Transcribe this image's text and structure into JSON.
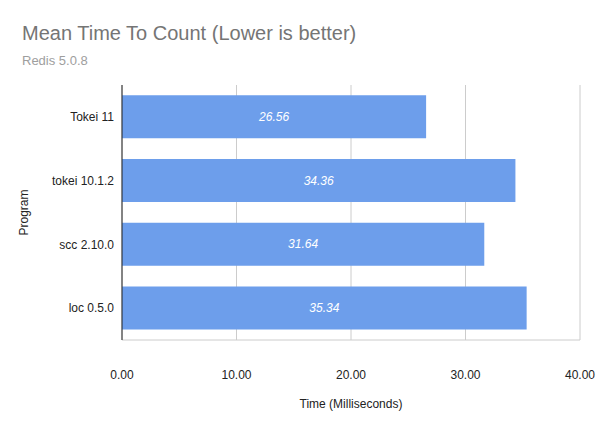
{
  "chart_data": {
    "type": "bar",
    "title": "Mean Time To Count (Lower is better)",
    "subtitle": "Redis 5.0.8",
    "x_label": "Time (Milliseconds)",
    "y_label": "Program",
    "categories": [
      "Tokei 11",
      "tokei 10.1.2",
      "scc 2.10.0",
      "loc 0.5.0"
    ],
    "values": [
      26.56,
      34.36,
      31.64,
      35.34
    ],
    "color": "#6d9eeb",
    "orientation": "horizontal",
    "xlim": [
      0,
      40
    ],
    "xticks": [
      {
        "value": 0,
        "label": "0.00"
      },
      {
        "value": 10,
        "label": "10.00"
      },
      {
        "value": 20,
        "label": "20.00"
      },
      {
        "value": 30,
        "label": "30.00"
      },
      {
        "value": 40,
        "label": "40.00"
      }
    ],
    "grid": true,
    "data_labels": true
  }
}
